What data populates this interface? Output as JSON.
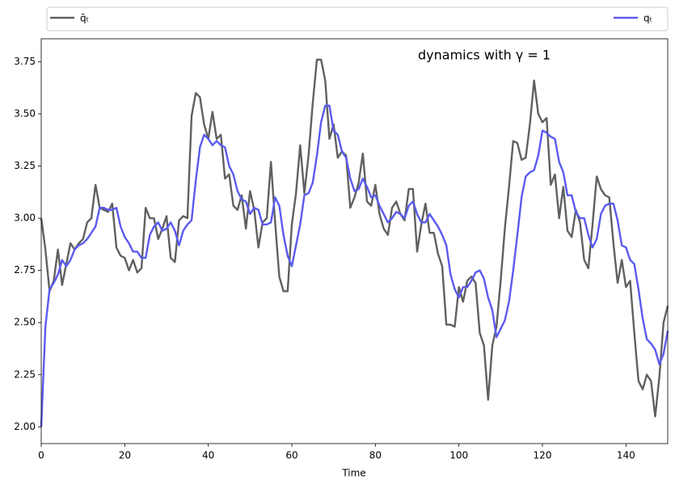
{
  "chart_data": {
    "type": "line",
    "annotation": "dynamics with γ = 1",
    "xlabel": "Time",
    "x": [
      0,
      1,
      2,
      3,
      4,
      5,
      6,
      7,
      8,
      9,
      10,
      11,
      12,
      13,
      14,
      15,
      16,
      17,
      18,
      19,
      20,
      21,
      22,
      23,
      24,
      25,
      26,
      27,
      28,
      29,
      30,
      31,
      32,
      33,
      34,
      35,
      36,
      37,
      38,
      39,
      40,
      41,
      42,
      43,
      44,
      45,
      46,
      47,
      48,
      49,
      50,
      51,
      52,
      53,
      54,
      55,
      56,
      57,
      58,
      59,
      60,
      61,
      62,
      63,
      64,
      65,
      66,
      67,
      68,
      69,
      70,
      71,
      72,
      73,
      74,
      75,
      76,
      77,
      78,
      79,
      80,
      81,
      82,
      83,
      84,
      85,
      86,
      87,
      88,
      89,
      90,
      91,
      92,
      93,
      94,
      95,
      96,
      97,
      98,
      99,
      100,
      101,
      102,
      103,
      104,
      105,
      106,
      107,
      108,
      109,
      110,
      111,
      112,
      113,
      114,
      115,
      116,
      117,
      118,
      119,
      120,
      121,
      122,
      123,
      124,
      125,
      126,
      127,
      128,
      129,
      130,
      131,
      132,
      133,
      134,
      135,
      136,
      137,
      138,
      139,
      140,
      141,
      142,
      143,
      144,
      145,
      146,
      147,
      148,
      149,
      150
    ],
    "series": [
      {
        "name": "q̄ₜ",
        "color": "#606060",
        "values": [
          3.0,
          2.85,
          2.65,
          2.7,
          2.85,
          2.68,
          2.78,
          2.88,
          2.85,
          2.88,
          2.9,
          2.98,
          3.0,
          3.16,
          3.05,
          3.04,
          3.03,
          3.07,
          2.86,
          2.82,
          2.81,
          2.75,
          2.8,
          2.74,
          2.76,
          3.05,
          3.0,
          3.0,
          2.9,
          2.95,
          3.01,
          2.81,
          2.79,
          2.99,
          3.01,
          3.0,
          3.49,
          3.6,
          3.58,
          3.45,
          3.38,
          3.51,
          3.38,
          3.4,
          3.19,
          3.21,
          3.06,
          3.04,
          3.11,
          2.95,
          3.13,
          3.04,
          2.86,
          2.98,
          3.0,
          3.27,
          2.98,
          2.72,
          2.65,
          2.65,
          2.97,
          3.12,
          3.35,
          3.12,
          3.3,
          3.55,
          3.76,
          3.76,
          3.66,
          3.38,
          3.45,
          3.29,
          3.32,
          3.3,
          3.05,
          3.1,
          3.17,
          3.31,
          3.08,
          3.06,
          3.16,
          3.02,
          2.95,
          2.92,
          3.05,
          3.08,
          3.02,
          2.99,
          3.14,
          3.14,
          2.84,
          2.97,
          3.07,
          2.93,
          2.93,
          2.83,
          2.77,
          2.49,
          2.49,
          2.48,
          2.67,
          2.6,
          2.7,
          2.72,
          2.69,
          2.45,
          2.39,
          2.13,
          2.39,
          2.48,
          2.7,
          2.95,
          3.15,
          3.37,
          3.36,
          3.28,
          3.29,
          3.45,
          3.66,
          3.5,
          3.46,
          3.48,
          3.16,
          3.21,
          3.0,
          3.15,
          2.94,
          2.91,
          3.04,
          2.98,
          2.8,
          2.76,
          2.97,
          3.2,
          3.14,
          3.11,
          3.1,
          2.88,
          2.69,
          2.8,
          2.67,
          2.7,
          2.45,
          2.22,
          2.18,
          2.25,
          2.22,
          2.05,
          2.24,
          2.5,
          2.58
        ]
      },
      {
        "name": "qₜ",
        "color": "#5a5af0",
        "values": [
          2.0,
          2.48,
          2.66,
          2.69,
          2.73,
          2.8,
          2.77,
          2.8,
          2.85,
          2.87,
          2.88,
          2.9,
          2.93,
          2.96,
          3.05,
          3.05,
          3.04,
          3.04,
          3.05,
          2.96,
          2.91,
          2.88,
          2.84,
          2.84,
          2.81,
          2.81,
          2.92,
          2.96,
          2.98,
          2.94,
          2.95,
          2.98,
          2.94,
          2.87,
          2.94,
          2.97,
          2.99,
          3.18,
          3.34,
          3.4,
          3.38,
          3.35,
          3.37,
          3.35,
          3.34,
          3.25,
          3.21,
          3.13,
          3.09,
          3.08,
          3.02,
          3.05,
          3.04,
          2.97,
          2.97,
          2.98,
          3.1,
          3.06,
          2.92,
          2.82,
          2.77,
          2.87,
          2.97,
          3.11,
          3.12,
          3.17,
          3.3,
          3.46,
          3.54,
          3.54,
          3.42,
          3.4,
          3.32,
          3.29,
          3.19,
          3.13,
          3.14,
          3.19,
          3.15,
          3.1,
          3.11,
          3.06,
          3.02,
          2.98,
          3.0,
          3.03,
          3.02,
          3.0,
          3.06,
          3.08,
          3.02,
          2.98,
          2.98,
          3.02,
          2.99,
          2.96,
          2.92,
          2.87,
          2.73,
          2.66,
          2.62,
          2.67,
          2.67,
          2.7,
          2.74,
          2.75,
          2.71,
          2.62,
          2.56,
          2.43,
          2.47,
          2.51,
          2.6,
          2.75,
          2.92,
          3.1,
          3.2,
          3.22,
          3.23,
          3.3,
          3.42,
          3.41,
          3.39,
          3.38,
          3.27,
          3.22,
          3.11,
          3.11,
          3.03,
          3.0,
          3.0,
          2.92,
          2.86,
          2.9,
          3.02,
          3.06,
          3.07,
          3.07,
          2.99,
          2.87,
          2.86,
          2.8,
          2.78,
          2.66,
          2.52,
          2.42,
          2.4,
          2.37,
          2.3,
          2.35,
          2.46
        ]
      }
    ],
    "xlim": [
      0,
      150
    ],
    "xticks": [
      0,
      20,
      40,
      60,
      80,
      100,
      120,
      140
    ],
    "ylim": [
      1.92,
      3.86
    ],
    "yticks": [
      {
        "value": 2,
        "label": "2.00"
      },
      {
        "value": 2.25,
        "label": "2.25"
      },
      {
        "value": 2.5,
        "label": "2.50"
      },
      {
        "value": 2.75,
        "label": "2.75"
      },
      {
        "value": 3,
        "label": "3.00"
      },
      {
        "value": 3.25,
        "label": "3.25"
      },
      {
        "value": 3.5,
        "label": "3.50"
      },
      {
        "value": 3.75,
        "label": "3.75"
      }
    ],
    "grid": false
  }
}
